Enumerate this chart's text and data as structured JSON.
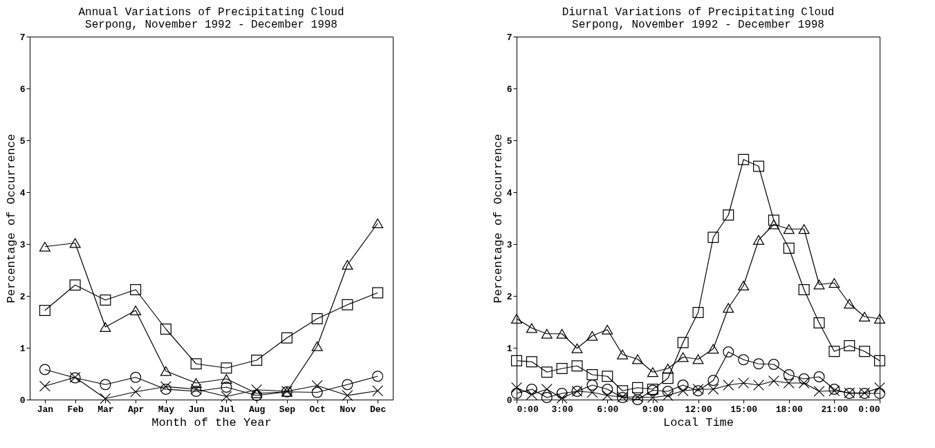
{
  "chart_data": [
    {
      "type": "line",
      "title": [
        "Annual Variations of Precipitating Cloud",
        "Serpong, November 1992 - December 1998"
      ],
      "xlabel": "Month of the Year",
      "ylabel": "Percentage of Occurrence",
      "categories": [
        "Jan",
        "Feb",
        "Mar",
        "Apr",
        "May",
        "Jun",
        "Jul",
        "Aug",
        "Sep",
        "Oct",
        "Nov",
        "Dec"
      ],
      "series": [
        {
          "color": "#000000",
          "marker": "triangle",
          "values": [
            2.95,
            3.02,
            1.4,
            1.72,
            0.55,
            0.32,
            0.4,
            0.12,
            0.15,
            1.03,
            2.6,
            3.4
          ]
        },
        {
          "color": "#000000",
          "marker": "square",
          "values": [
            1.72,
            2.21,
            1.92,
            2.12,
            1.36,
            0.69,
            0.61,
            0.76,
            1.19,
            1.56,
            1.83,
            2.06
          ]
        },
        {
          "color": "#000000",
          "marker": "circle",
          "values": [
            0.58,
            0.42,
            0.29,
            0.43,
            0.2,
            0.16,
            0.24,
            0.08,
            0.15,
            0.14,
            0.29,
            0.45
          ]
        },
        {
          "color": "#000000",
          "marker": "cross",
          "values": [
            0.26,
            0.43,
            0.02,
            0.15,
            0.25,
            0.2,
            0.06,
            0.19,
            0.16,
            0.27,
            0.08,
            0.17
          ]
        }
      ],
      "ylim": [
        0,
        7
      ],
      "yticks": [
        0,
        1,
        2,
        3,
        4,
        5,
        6,
        7
      ],
      "grid": false,
      "line_style": "solid"
    },
    {
      "type": "line",
      "title": [
        "Diurnal Variations of Precipitating Cloud",
        "Serpong, November 1992 - December 1998"
      ],
      "xlabel": "Local Time",
      "ylabel": "Percentage of Occurrence",
      "x": [
        0,
        1,
        2,
        3,
        4,
        5,
        6,
        7,
        8,
        9,
        10,
        11,
        12,
        13,
        14,
        15,
        16,
        17,
        18,
        19,
        20,
        21,
        22,
        23,
        24
      ],
      "series": [
        {
          "color": "#000000",
          "marker": "triangle",
          "values": [
            1.56,
            1.38,
            1.27,
            1.27,
            0.99,
            1.23,
            1.35,
            0.87,
            0.78,
            0.53,
            0.6,
            0.82,
            0.78,
            0.98,
            1.77,
            2.2,
            3.08,
            3.38,
            3.29,
            3.29,
            2.22,
            2.25,
            1.85,
            1.6,
            1.56
          ]
        },
        {
          "color": "#000000",
          "marker": "square",
          "values": [
            0.75,
            0.73,
            0.53,
            0.6,
            0.65,
            0.48,
            0.45,
            0.17,
            0.23,
            0.2,
            0.41,
            1.1,
            1.68,
            3.13,
            3.56,
            4.63,
            4.5,
            3.46,
            2.92,
            2.12,
            1.48,
            0.93,
            1.04,
            0.93,
            0.75
          ]
        },
        {
          "color": "#000000",
          "marker": "circle",
          "values": [
            0.12,
            0.2,
            0.04,
            0.12,
            0.16,
            0.28,
            0.2,
            0.04,
            0.0,
            0.18,
            0.16,
            0.28,
            0.17,
            0.37,
            0.92,
            0.77,
            0.69,
            0.68,
            0.48,
            0.4,
            0.44,
            0.2,
            0.12,
            0.12,
            0.12
          ]
        },
        {
          "color": "#000000",
          "marker": "cross",
          "values": [
            0.23,
            0.1,
            0.2,
            0.03,
            0.16,
            0.14,
            0.08,
            0.05,
            0.05,
            0.04,
            0.08,
            0.17,
            0.2,
            0.2,
            0.28,
            0.32,
            0.28,
            0.36,
            0.32,
            0.32,
            0.16,
            0.17,
            0.13,
            0.13,
            0.23
          ]
        }
      ],
      "xlim": [
        0,
        24
      ],
      "xticks": [
        {
          "value": 0,
          "label": "0:00"
        },
        {
          "value": 3,
          "label": "3:00"
        },
        {
          "value": 6,
          "label": "6:00"
        },
        {
          "value": 9,
          "label": "9:00"
        },
        {
          "value": 12,
          "label": "12:00"
        },
        {
          "value": 15,
          "label": "15:00"
        },
        {
          "value": 18,
          "label": "18:00"
        },
        {
          "value": 21,
          "label": "21:00"
        },
        {
          "value": 24,
          "label": "0:00"
        }
      ],
      "ylim": [
        0,
        7
      ],
      "yticks": [
        0,
        1,
        2,
        3,
        4,
        5,
        6,
        7
      ],
      "grid": false,
      "line_style": "solid"
    }
  ]
}
